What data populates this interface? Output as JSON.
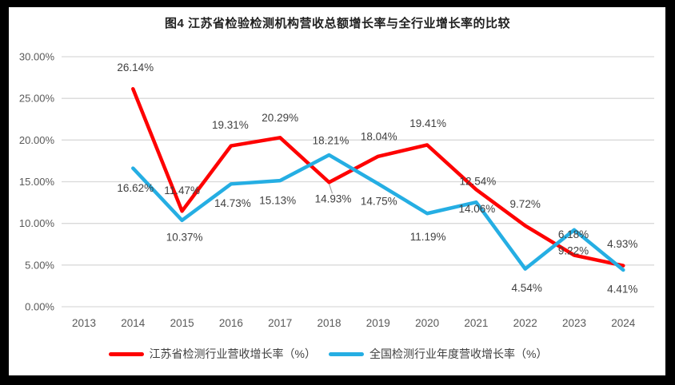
{
  "window": {
    "frame_color": "#000000",
    "background_color": "#ffffff"
  },
  "chart_data": {
    "type": "line",
    "title": "图4 江苏省检验检测机构营收总额增长率与全行业增长率的比较",
    "categories": [
      "2013",
      "2014",
      "2015",
      "2016",
      "2017",
      "2018",
      "2019",
      "2020",
      "2021",
      "2022",
      "2023",
      "2024"
    ],
    "xlabel": "",
    "ylabel": "",
    "ylim": [
      0,
      30
    ],
    "grid": true,
    "legend_position": "bottom",
    "y_axis": {
      "ticks": [
        "0.00%",
        "5.00%",
        "10.00%",
        "15.00%",
        "20.00%",
        "25.00%",
        "30.00%"
      ],
      "min": 0,
      "max": 30,
      "step": 5
    },
    "series": [
      {
        "name": "江苏省检测行业营收增长率（%）",
        "color": "#FE0000",
        "values": [
          null,
          26.14,
          11.47,
          19.31,
          20.29,
          14.93,
          18.04,
          19.41,
          14.06,
          9.72,
          6.18,
          4.93
        ],
        "labels": [
          null,
          "26.14%",
          "11.47%",
          "19.31%",
          "20.29%",
          "14.93%",
          "18.04%",
          "19.41%",
          "14.06%",
          "9.72%",
          "6.18%",
          "4.93%"
        ],
        "label_offsets": [
          null,
          [
            3,
            -27
          ],
          [
            0,
            -26
          ],
          [
            -1,
            -26
          ],
          [
            0,
            -25
          ],
          [
            5,
            21
          ],
          [
            1,
            -25
          ],
          [
            1,
            -27
          ],
          [
            1,
            24
          ],
          [
            0,
            -27
          ],
          [
            -1,
            -26
          ],
          [
            -1,
            -27
          ]
        ]
      },
      {
        "name": "全国检测行业年度营收增长率（%）",
        "color": "#25AEE3",
        "values": [
          null,
          16.62,
          10.37,
          14.73,
          15.13,
          18.21,
          14.75,
          11.19,
          12.54,
          4.54,
          9.22,
          4.41
        ],
        "labels": [
          null,
          "16.62%",
          "10.37%",
          "14.73%",
          "15.13%",
          "18.21%",
          "14.75%",
          "11.19%",
          "12.54%",
          "4.54%",
          "9.22%",
          "4.41%"
        ],
        "label_offsets": [
          null,
          [
            3,
            25
          ],
          [
            3,
            21
          ],
          [
            2,
            24
          ],
          [
            -3,
            25
          ],
          [
            2,
            -18
          ],
          [
            1,
            22
          ],
          [
            1,
            29
          ],
          [
            2,
            -26
          ],
          [
            2,
            24
          ],
          [
            -1,
            26
          ],
          [
            -1,
            24
          ]
        ]
      }
    ],
    "leader_line": {
      "series_index": 0,
      "category_index": 5
    },
    "style": {
      "gridline_color": "#D9D9D9",
      "axis_text_color": "#595959",
      "data_label_color": "#404040"
    }
  }
}
